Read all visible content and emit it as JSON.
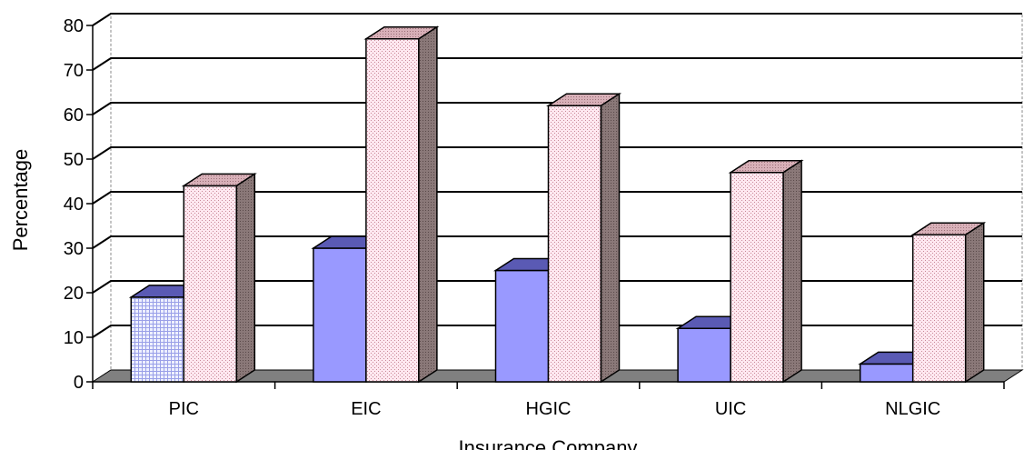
{
  "chart_data": {
    "type": "bar",
    "style": "3d-clustered-column",
    "categories": [
      "PIC",
      "EIC",
      "HGIC",
      "UIC",
      "NLGIC"
    ],
    "series": [
      {
        "values": [
          19,
          30,
          25,
          12,
          4
        ],
        "color": "#9999ff"
      },
      {
        "values": [
          44,
          77,
          62,
          47,
          33
        ],
        "color": "#ffe6ef"
      }
    ],
    "title": "",
    "xlabel": "Insurance Company",
    "ylabel": "Percentage",
    "ylim": [
      0,
      80
    ],
    "yticks": [
      "0",
      "10",
      "20",
      "30",
      "40",
      "50",
      "60",
      "70",
      "80"
    ],
    "grid": true,
    "legend": "none",
    "colors": {
      "floor": "#808080",
      "side_series1": "#2e2e8c",
      "side_series2": "#8a7878",
      "top_series1": "#5a5ab4",
      "top_series2": "#c8a0a8",
      "pic_highlight": "#e4e8ff"
    }
  }
}
